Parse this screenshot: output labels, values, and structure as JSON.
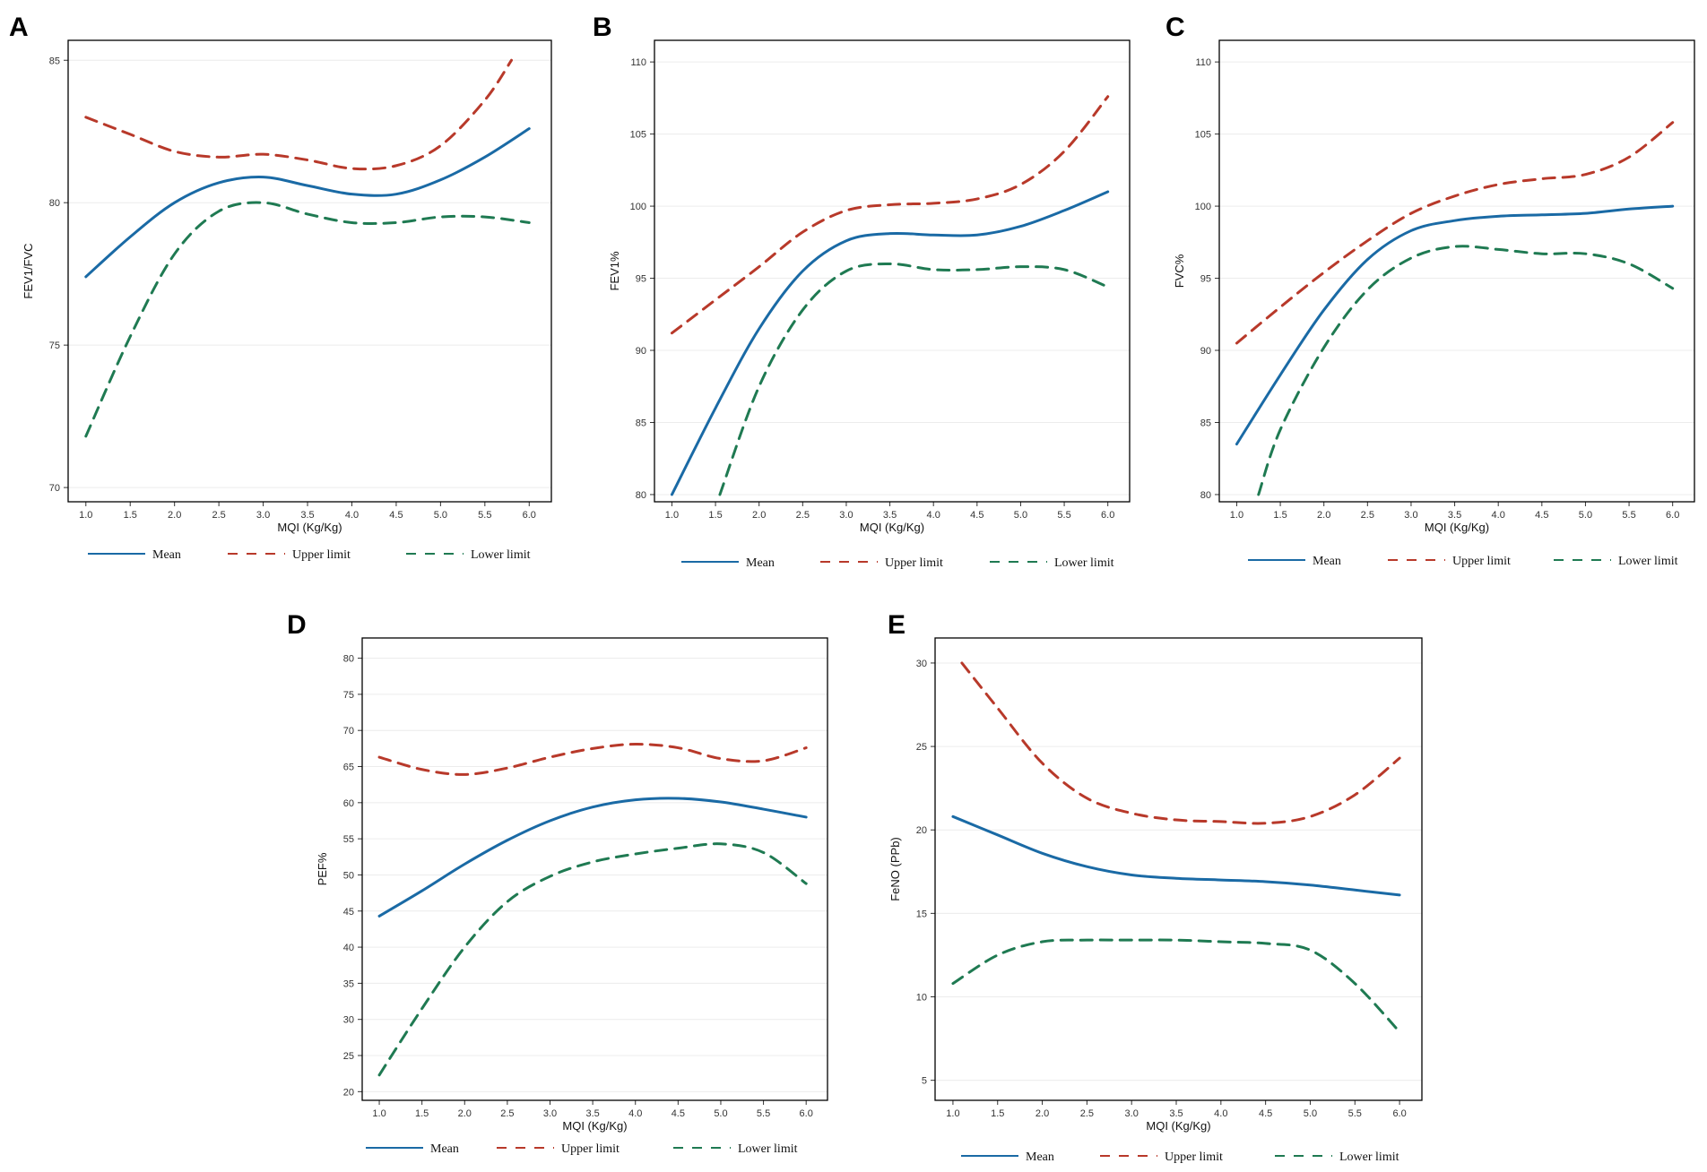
{
  "colors": {
    "mean": "#1a6aa5",
    "upper": "#b8392a",
    "lower": "#1f7a52"
  },
  "legend": {
    "mean_label": "Mean",
    "upper_label": "Upper limit",
    "lower_label": "Lower limit"
  },
  "chart_data": [
    {
      "panel": "A",
      "type": "line",
      "title": "",
      "xlabel": "MQI (Kg/Kg)",
      "ylabel": "FEV1/FVC",
      "xlim": [
        0.8,
        6.25
      ],
      "ylim": [
        69.5,
        85.7
      ],
      "xticks": [
        "1.0",
        "1.5",
        "2.0",
        "2.5",
        "3.0",
        "3.5",
        "4.0",
        "4.5",
        "5.0",
        "5.5",
        "6.0"
      ],
      "yticks": [
        "70",
        "75",
        "80",
        "85"
      ],
      "series": [
        {
          "name": "Mean",
          "x": [
            1.0,
            1.5,
            2.0,
            2.5,
            3.0,
            3.5,
            4.0,
            4.5,
            5.0,
            5.5,
            6.0
          ],
          "y": [
            77.4,
            78.8,
            80.0,
            80.7,
            80.9,
            80.6,
            80.3,
            80.3,
            80.8,
            81.6,
            82.6
          ]
        },
        {
          "name": "Upper limit",
          "x": [
            1.0,
            1.5,
            2.0,
            2.5,
            3.0,
            3.5,
            4.0,
            4.5,
            5.0,
            5.5,
            5.8
          ],
          "y": [
            83.0,
            82.4,
            81.8,
            81.6,
            81.7,
            81.5,
            81.2,
            81.3,
            82.0,
            83.6,
            85.0
          ]
        },
        {
          "name": "Lower limit",
          "x": [
            1.0,
            1.5,
            2.0,
            2.5,
            3.0,
            3.5,
            4.0,
            4.5,
            5.0,
            5.5,
            6.0
          ],
          "y": [
            71.8,
            75.3,
            78.2,
            79.7,
            80.0,
            79.6,
            79.3,
            79.3,
            79.5,
            79.5,
            79.3
          ]
        }
      ]
    },
    {
      "panel": "B",
      "type": "line",
      "title": "",
      "xlabel": "MQI (Kg/Kg)",
      "ylabel": "FEV1%",
      "xlim": [
        0.8,
        6.25
      ],
      "ylim": [
        79.5,
        111.5
      ],
      "xticks": [
        "1.0",
        "1.5",
        "2.0",
        "2.5",
        "3.0",
        "3.5",
        "4.0",
        "4.5",
        "5.0",
        "5.5",
        "6.0"
      ],
      "yticks": [
        "80",
        "85",
        "90",
        "95",
        "100",
        "105",
        "110"
      ],
      "series": [
        {
          "name": "Mean",
          "x": [
            1.0,
            1.5,
            2.0,
            2.5,
            3.0,
            3.5,
            4.0,
            4.5,
            5.0,
            5.5,
            6.0
          ],
          "y": [
            80.0,
            86.0,
            91.5,
            95.5,
            97.6,
            98.1,
            98.0,
            98.0,
            98.6,
            99.7,
            101.0
          ]
        },
        {
          "name": "Upper limit",
          "x": [
            1.0,
            1.5,
            2.0,
            2.5,
            3.0,
            3.5,
            4.0,
            4.5,
            5.0,
            5.5,
            6.0
          ],
          "y": [
            91.2,
            93.5,
            95.8,
            98.2,
            99.7,
            100.1,
            100.2,
            100.5,
            101.5,
            103.8,
            107.6
          ]
        },
        {
          "name": "Lower limit",
          "x": [
            1.55,
            2.0,
            2.5,
            3.0,
            3.5,
            4.0,
            4.5,
            5.0,
            5.5,
            6.0
          ],
          "y": [
            80.0,
            87.5,
            92.8,
            95.5,
            96.0,
            95.6,
            95.6,
            95.8,
            95.6,
            94.4
          ]
        }
      ]
    },
    {
      "panel": "C",
      "type": "line",
      "title": "",
      "xlabel": "MQI (Kg/Kg)",
      "ylabel": "FVC%",
      "xlim": [
        0.8,
        6.25
      ],
      "ylim": [
        79.5,
        111.5
      ],
      "xticks": [
        "1.0",
        "1.5",
        "2.0",
        "2.5",
        "3.0",
        "3.5",
        "4.0",
        "4.5",
        "5.0",
        "5.5",
        "6.0"
      ],
      "yticks": [
        "80",
        "85",
        "90",
        "95",
        "100",
        "105",
        "110"
      ],
      "series": [
        {
          "name": "Mean",
          "x": [
            1.0,
            1.5,
            2.0,
            2.5,
            3.0,
            3.5,
            4.0,
            4.5,
            5.0,
            5.5,
            6.0
          ],
          "y": [
            83.5,
            88.3,
            92.8,
            96.3,
            98.3,
            99.0,
            99.3,
            99.4,
            99.5,
            99.8,
            100.0
          ]
        },
        {
          "name": "Upper limit",
          "x": [
            1.0,
            1.5,
            2.0,
            2.5,
            3.0,
            3.5,
            4.0,
            4.5,
            5.0,
            5.5,
            6.0
          ],
          "y": [
            90.5,
            93.0,
            95.4,
            97.6,
            99.5,
            100.7,
            101.5,
            101.9,
            102.2,
            103.4,
            105.8
          ]
        },
        {
          "name": "Lower limit",
          "x": [
            1.25,
            1.5,
            2.0,
            2.5,
            3.0,
            3.5,
            4.0,
            4.5,
            5.0,
            5.5,
            6.0
          ],
          "y": [
            80.0,
            84.5,
            90.2,
            94.2,
            96.4,
            97.2,
            97.0,
            96.7,
            96.7,
            96.0,
            94.3
          ]
        }
      ]
    },
    {
      "panel": "D",
      "type": "line",
      "title": "",
      "xlabel": "MQI (Kg/Kg)",
      "ylabel": "PEF%",
      "xlim": [
        0.8,
        6.25
      ],
      "ylim": [
        18.8,
        82.8
      ],
      "xticks": [
        "1.0",
        "1.5",
        "2.0",
        "2.5",
        "3.0",
        "3.5",
        "4.0",
        "4.5",
        "5.0",
        "5.5",
        "6.0"
      ],
      "yticks": [
        "20",
        "25",
        "30",
        "35",
        "40",
        "45",
        "50",
        "55",
        "60",
        "65",
        "70",
        "75",
        "80"
      ],
      "series": [
        {
          "name": "Mean",
          "x": [
            1.0,
            1.5,
            2.0,
            2.5,
            3.0,
            3.5,
            4.0,
            4.5,
            5.0,
            5.5,
            6.0
          ],
          "y": [
            44.3,
            47.8,
            51.5,
            54.8,
            57.5,
            59.4,
            60.4,
            60.6,
            60.1,
            59.1,
            58.0
          ]
        },
        {
          "name": "Upper limit",
          "x": [
            1.0,
            1.5,
            2.0,
            2.5,
            3.0,
            3.5,
            4.0,
            4.5,
            5.0,
            5.5,
            6.0
          ],
          "y": [
            66.3,
            64.6,
            63.9,
            64.8,
            66.3,
            67.5,
            68.1,
            67.6,
            66.1,
            65.8,
            67.6
          ]
        },
        {
          "name": "Lower limit",
          "x": [
            1.0,
            1.5,
            2.0,
            2.5,
            3.0,
            3.5,
            4.0,
            4.5,
            5.0,
            5.5,
            6.0
          ],
          "y": [
            22.3,
            31.5,
            40.0,
            46.3,
            49.8,
            51.8,
            52.9,
            53.7,
            54.3,
            53.1,
            48.8
          ]
        }
      ]
    },
    {
      "panel": "E",
      "type": "line",
      "title": "",
      "xlabel": "MQI (Kg/Kg)",
      "ylabel": "FeNO (PPb)",
      "xlim": [
        0.8,
        6.25
      ],
      "ylim": [
        3.8,
        31.5
      ],
      "xticks": [
        "1.0",
        "1.5",
        "2.0",
        "2.5",
        "3.0",
        "3.5",
        "4.0",
        "4.5",
        "5.0",
        "5.5",
        "6.0"
      ],
      "yticks": [
        "5",
        "10",
        "15",
        "20",
        "25",
        "30"
      ],
      "series": [
        {
          "name": "Mean",
          "x": [
            1.0,
            1.5,
            2.0,
            2.5,
            3.0,
            3.5,
            4.0,
            4.5,
            5.0,
            5.5,
            6.0
          ],
          "y": [
            20.8,
            19.7,
            18.6,
            17.8,
            17.3,
            17.1,
            17.0,
            16.9,
            16.7,
            16.4,
            16.1
          ]
        },
        {
          "name": "Upper limit",
          "x": [
            1.1,
            1.5,
            2.0,
            2.5,
            3.0,
            3.5,
            4.0,
            4.5,
            5.0,
            5.5,
            6.0
          ],
          "y": [
            30.0,
            27.3,
            24.0,
            21.9,
            21.0,
            20.6,
            20.5,
            20.4,
            20.8,
            22.1,
            24.3
          ]
        },
        {
          "name": "Lower limit",
          "x": [
            1.0,
            1.5,
            2.0,
            2.5,
            3.0,
            3.5,
            4.0,
            4.5,
            5.0,
            5.5,
            6.0
          ],
          "y": [
            10.8,
            12.5,
            13.3,
            13.4,
            13.4,
            13.4,
            13.3,
            13.2,
            12.8,
            10.8,
            7.9
          ]
        }
      ]
    }
  ]
}
